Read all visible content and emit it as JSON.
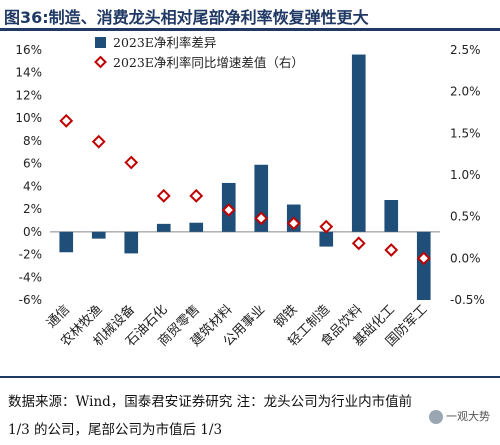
{
  "title": "图36:制造、消费龙头相对尾部净利率恢复弹性更大",
  "chart_data": {
    "type": "bar",
    "categories": [
      "通信",
      "农林牧渔",
      "机械设备",
      "石油石化",
      "商贸零售",
      "建筑材料",
      "公用事业",
      "钢铁",
      "轻工制造",
      "食品饮料",
      "基础化工",
      "国防军工"
    ],
    "series": [
      {
        "name": "2023E净利率差异",
        "kind": "bar",
        "axis": "left",
        "color": "#1f4e79",
        "values": [
          -1.8,
          -0.6,
          -1.9,
          0.7,
          0.8,
          4.3,
          5.9,
          2.4,
          -1.3,
          15.6,
          2.8,
          -6.0
        ]
      },
      {
        "name": "2023E净利率同比增速差值（右）",
        "kind": "marker",
        "axis": "right",
        "color": "#c00000",
        "values": [
          1.65,
          1.4,
          1.15,
          0.75,
          0.75,
          0.58,
          0.48,
          0.42,
          0.38,
          0.18,
          0.1,
          0.0
        ]
      }
    ],
    "y_left": {
      "min": -6,
      "max": 16,
      "step": 2,
      "suffix": "%"
    },
    "y_right": {
      "min": -0.5,
      "max": 2.5,
      "step": 0.5,
      "suffix": "%"
    },
    "legend_position": "top-left"
  },
  "footer": {
    "text": "数据来源：Wind，国泰君安证券研究 注：龙头公司为行业内市值前 1/3 的公司，尾部公司为市值后 1/3"
  },
  "watermark": {
    "text": "一观大势"
  }
}
